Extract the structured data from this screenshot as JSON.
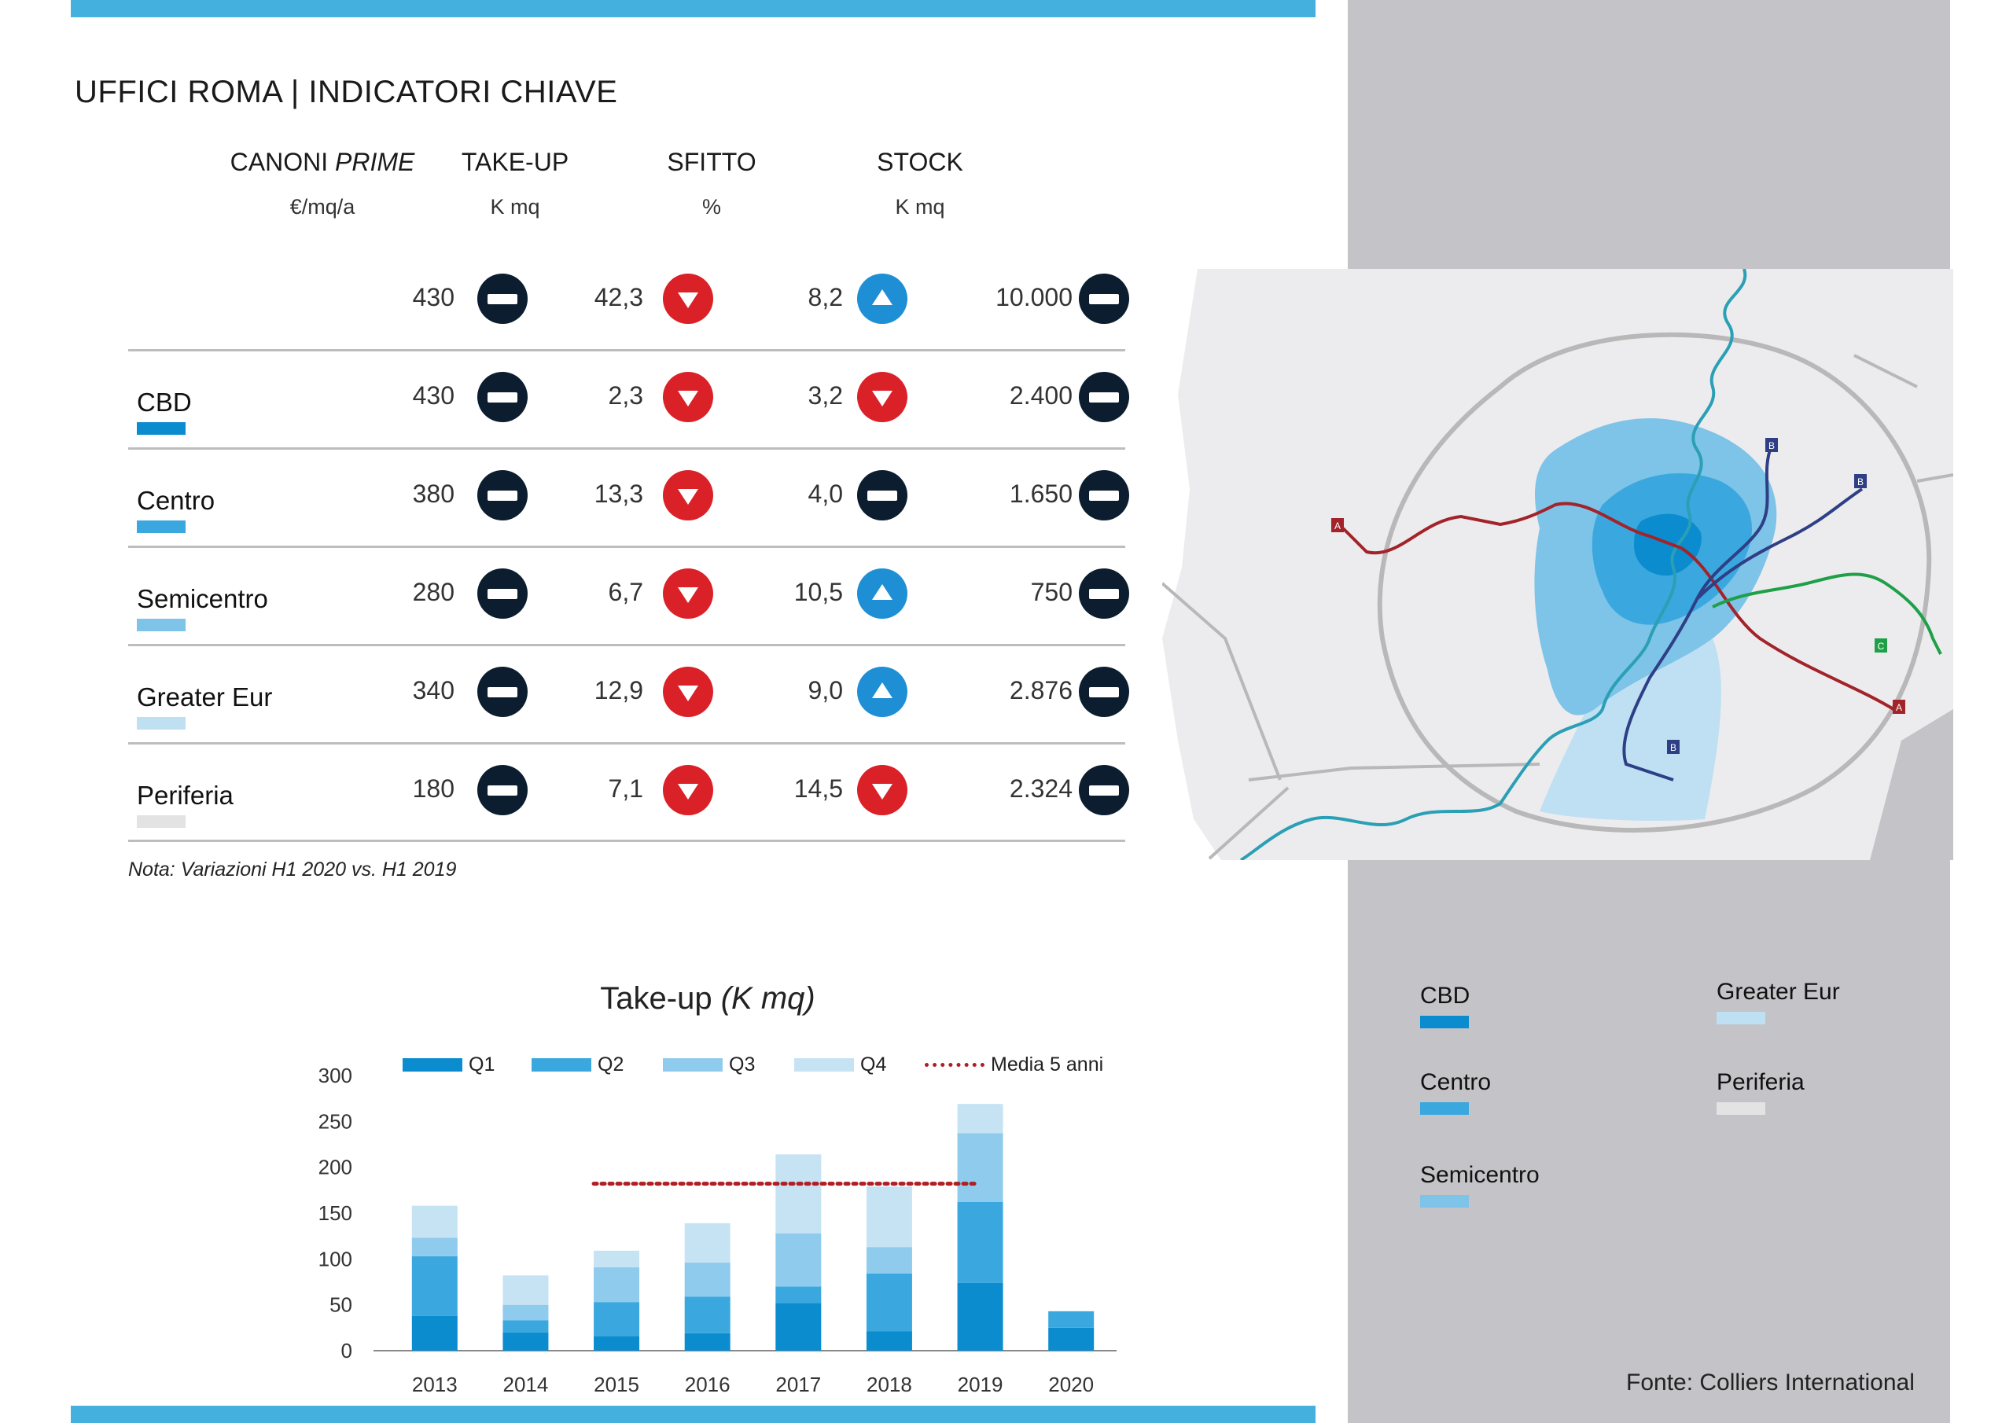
{
  "title": "UFFICI ROMA | INDICATORI CHIAVE",
  "columns": [
    {
      "head_main": "CANONI ",
      "head_em": "PRIME",
      "unit": "€/mq/a"
    },
    {
      "head_main": "TAKE-UP",
      "head_em": "",
      "unit": "K mq"
    },
    {
      "head_main": "SFITTO",
      "head_em": "",
      "unit": "%"
    },
    {
      "head_main": "STOCK",
      "head_em": "",
      "unit": "K mq"
    }
  ],
  "rows": [
    {
      "label": "",
      "swatch": "",
      "cells": [
        {
          "value": "430",
          "trend": "neutral"
        },
        {
          "value": "42,3",
          "trend": "down"
        },
        {
          "value": "8,2",
          "trend": "up"
        },
        {
          "value": "10.000",
          "trend": "neutral"
        }
      ]
    },
    {
      "label": "CBD",
      "swatch": "#0a8ccf",
      "cells": [
        {
          "value": "430",
          "trend": "neutral"
        },
        {
          "value": "2,3",
          "trend": "down"
        },
        {
          "value": "3,2",
          "trend": "down"
        },
        {
          "value": "2.400",
          "trend": "neutral"
        }
      ]
    },
    {
      "label": "Centro",
      "swatch": "#3aa8df",
      "cells": [
        {
          "value": "380",
          "trend": "neutral"
        },
        {
          "value": "13,3",
          "trend": "down"
        },
        {
          "value": "4,0",
          "trend": "neutral"
        },
        {
          "value": "1.650",
          "trend": "neutral"
        }
      ]
    },
    {
      "label": "Semicentro",
      "swatch": "#7ec3e8",
      "cells": [
        {
          "value": "280",
          "trend": "neutral"
        },
        {
          "value": "6,7",
          "trend": "down"
        },
        {
          "value": "10,5",
          "trend": "up"
        },
        {
          "value": "750",
          "trend": "neutral"
        }
      ]
    },
    {
      "label": "Greater Eur",
      "swatch": "#bfe0f3",
      "cells": [
        {
          "value": "340",
          "trend": "neutral"
        },
        {
          "value": "12,9",
          "trend": "down"
        },
        {
          "value": "9,0",
          "trend": "up"
        },
        {
          "value": "2.876",
          "trend": "neutral"
        }
      ]
    },
    {
      "label": "Periferia",
      "swatch": "#e3e3e3",
      "cells": [
        {
          "value": "180",
          "trend": "neutral"
        },
        {
          "value": "7,1",
          "trend": "down"
        },
        {
          "value": "14,5",
          "trend": "down"
        },
        {
          "value": "2.324",
          "trend": "neutral"
        }
      ]
    }
  ],
  "note": "Nota: Variazioni H1 2020 vs. H1 2019",
  "chart_data": {
    "type": "bar",
    "title": "Take-up",
    "title_unit": "(K mq)",
    "categories": [
      "2013",
      "2014",
      "2015",
      "2016",
      "2017",
      "2018",
      "2019",
      "2020"
    ],
    "series": [
      {
        "name": "Q1",
        "color": "#0a8ccf",
        "values": [
          38,
          20,
          16,
          19,
          52,
          21,
          74,
          25
        ]
      },
      {
        "name": "Q2",
        "color": "#3aa8df",
        "values": [
          65,
          13,
          37,
          40,
          18,
          63,
          88,
          18
        ]
      },
      {
        "name": "Q3",
        "color": "#8fcbec",
        "values": [
          20,
          17,
          38,
          37,
          58,
          29,
          75,
          0
        ]
      },
      {
        "name": "Q4",
        "color": "#c6e3f4",
        "values": [
          35,
          32,
          18,
          43,
          86,
          66,
          32,
          0
        ]
      }
    ],
    "average": {
      "name": "Media 5 anni",
      "value": 182,
      "from": "2015",
      "to": "2019",
      "color": "#b01e23"
    },
    "yticks": [
      "0",
      "50",
      "100",
      "150",
      "200",
      "250",
      "300"
    ],
    "ylim": [
      0,
      300
    ]
  },
  "map_legend": [
    {
      "label": "CBD",
      "color": "#0a8ccf"
    },
    {
      "label": "Greater Eur",
      "color": "#bfe0f3"
    },
    {
      "label": "Centro",
      "color": "#3aa8df"
    },
    {
      "label": "Periferia",
      "color": "#e3e3e3"
    },
    {
      "label": "Semicentro",
      "color": "#7ec3e8"
    }
  ],
  "metro_lines": [
    {
      "label": "A",
      "color": "#a3232a"
    },
    {
      "label": "B",
      "color": "#2e3f86"
    },
    {
      "label": "C",
      "color": "#1fa048"
    }
  ],
  "source": "Fonte: Colliers International"
}
